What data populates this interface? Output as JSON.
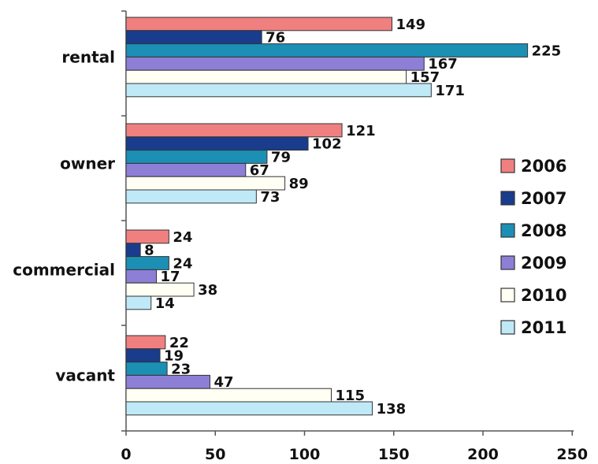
{
  "chart_data": {
    "type": "bar",
    "orientation": "horizontal",
    "categories": [
      "rental",
      "owner",
      "commercial",
      "vacant"
    ],
    "series": [
      {
        "name": "2006",
        "color": "#f08080",
        "values": [
          149,
          121,
          24,
          22
        ]
      },
      {
        "name": "2007",
        "color": "#1a3c8c",
        "values": [
          76,
          102,
          8,
          19
        ]
      },
      {
        "name": "2008",
        "color": "#1c8fb5",
        "values": [
          225,
          79,
          24,
          23
        ]
      },
      {
        "name": "2009",
        "color": "#8e7fd6",
        "values": [
          167,
          67,
          17,
          47
        ]
      },
      {
        "name": "2010",
        "color": "#fffff4",
        "values": [
          157,
          89,
          38,
          115
        ]
      },
      {
        "name": "2011",
        "color": "#bfe9f7",
        "values": [
          171,
          73,
          14,
          138
        ]
      }
    ],
    "xlim": [
      0,
      250
    ],
    "xticks": [
      0,
      50,
      100,
      150,
      200,
      250
    ],
    "grid": false,
    "legend_position": "right"
  }
}
